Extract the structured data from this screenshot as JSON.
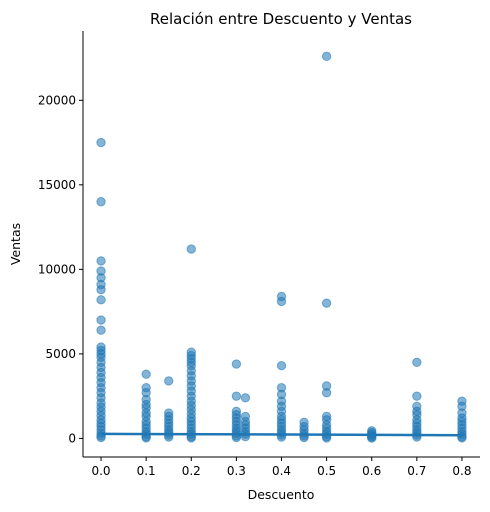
{
  "chart_data": {
    "type": "scatter",
    "title": "Relación entre Descuento y Ventas",
    "xlabel": "Descuento",
    "ylabel": "Ventas",
    "xlim": [
      -0.04,
      0.84
    ],
    "ylim": [
      -1100,
      24100
    ],
    "xticks": [
      0.0,
      0.1,
      0.2,
      0.3,
      0.4,
      0.5,
      0.6,
      0.7,
      0.8
    ],
    "xtick_labels": [
      "0.0",
      "0.1",
      "0.2",
      "0.3",
      "0.4",
      "0.5",
      "0.6",
      "0.7",
      "0.8"
    ],
    "yticks": [
      0,
      5000,
      10000,
      15000,
      20000
    ],
    "ytick_labels": [
      "0",
      "5000",
      "10000",
      "15000",
      "20000"
    ],
    "grid": false,
    "colors": {
      "points": "#1f77b4",
      "regression": "#1f77b4"
    },
    "regression_line": {
      "x": [
        0.0,
        0.8
      ],
      "y": [
        270,
        190
      ]
    },
    "series": [
      {
        "values": [
          [
            0.0,
            17500
          ],
          [
            0.0,
            14000
          ],
          [
            0.0,
            10500
          ],
          [
            0.0,
            9900
          ],
          [
            0.0,
            9500
          ],
          [
            0.0,
            9100
          ],
          [
            0.0,
            8800
          ],
          [
            0.0,
            8200
          ],
          [
            0.0,
            7000
          ],
          [
            0.0,
            6400
          ],
          [
            0.0,
            5400
          ],
          [
            0.0,
            5200
          ],
          [
            0.0,
            5000
          ],
          [
            0.0,
            4800
          ],
          [
            0.0,
            4500
          ],
          [
            0.0,
            4200
          ],
          [
            0.0,
            3900
          ],
          [
            0.0,
            3600
          ],
          [
            0.0,
            3300
          ],
          [
            0.0,
            3000
          ],
          [
            0.0,
            2700
          ],
          [
            0.0,
            2400
          ],
          [
            0.0,
            2100
          ],
          [
            0.0,
            1850
          ],
          [
            0.0,
            1600
          ],
          [
            0.0,
            1350
          ],
          [
            0.0,
            1100
          ],
          [
            0.0,
            900
          ],
          [
            0.0,
            700
          ],
          [
            0.0,
            500
          ],
          [
            0.0,
            300
          ],
          [
            0.0,
            150
          ],
          [
            0.0,
            50
          ],
          [
            0.1,
            3800
          ],
          [
            0.1,
            3000
          ],
          [
            0.1,
            2700
          ],
          [
            0.1,
            2300
          ],
          [
            0.1,
            2000
          ],
          [
            0.1,
            1800
          ],
          [
            0.1,
            1500
          ],
          [
            0.1,
            1300
          ],
          [
            0.1,
            1000
          ],
          [
            0.1,
            800
          ],
          [
            0.1,
            600
          ],
          [
            0.1,
            400
          ],
          [
            0.1,
            250
          ],
          [
            0.1,
            100
          ],
          [
            0.1,
            30
          ],
          [
            0.15,
            3400
          ],
          [
            0.15,
            1500
          ],
          [
            0.15,
            1300
          ],
          [
            0.15,
            1100
          ],
          [
            0.15,
            900
          ],
          [
            0.15,
            700
          ],
          [
            0.15,
            500
          ],
          [
            0.15,
            350
          ],
          [
            0.15,
            200
          ],
          [
            0.15,
            80
          ],
          [
            0.2,
            11200
          ],
          [
            0.2,
            5100
          ],
          [
            0.2,
            4900
          ],
          [
            0.2,
            4700
          ],
          [
            0.2,
            4500
          ],
          [
            0.2,
            4300
          ],
          [
            0.2,
            4000
          ],
          [
            0.2,
            3700
          ],
          [
            0.2,
            3400
          ],
          [
            0.2,
            3100
          ],
          [
            0.2,
            2800
          ],
          [
            0.2,
            2500
          ],
          [
            0.2,
            2200
          ],
          [
            0.2,
            1950
          ],
          [
            0.2,
            1700
          ],
          [
            0.2,
            1450
          ],
          [
            0.2,
            1200
          ],
          [
            0.2,
            1000
          ],
          [
            0.2,
            800
          ],
          [
            0.2,
            600
          ],
          [
            0.2,
            400
          ],
          [
            0.2,
            250
          ],
          [
            0.2,
            100
          ],
          [
            0.2,
            30
          ],
          [
            0.3,
            4400
          ],
          [
            0.3,
            2500
          ],
          [
            0.3,
            1600
          ],
          [
            0.3,
            1400
          ],
          [
            0.3,
            1200
          ],
          [
            0.3,
            1000
          ],
          [
            0.3,
            800
          ],
          [
            0.3,
            600
          ],
          [
            0.3,
            450
          ],
          [
            0.3,
            300
          ],
          [
            0.3,
            150
          ],
          [
            0.3,
            50
          ],
          [
            0.32,
            2400
          ],
          [
            0.32,
            1300
          ],
          [
            0.32,
            1000
          ],
          [
            0.32,
            800
          ],
          [
            0.32,
            600
          ],
          [
            0.32,
            400
          ],
          [
            0.32,
            250
          ],
          [
            0.32,
            100
          ],
          [
            0.4,
            8400
          ],
          [
            0.4,
            8100
          ],
          [
            0.4,
            4300
          ],
          [
            0.4,
            3000
          ],
          [
            0.4,
            2600
          ],
          [
            0.4,
            2200
          ],
          [
            0.4,
            1900
          ],
          [
            0.4,
            1600
          ],
          [
            0.4,
            1300
          ],
          [
            0.4,
            1100
          ],
          [
            0.4,
            900
          ],
          [
            0.4,
            700
          ],
          [
            0.4,
            500
          ],
          [
            0.4,
            350
          ],
          [
            0.4,
            200
          ],
          [
            0.4,
            80
          ],
          [
            0.45,
            950
          ],
          [
            0.45,
            700
          ],
          [
            0.45,
            500
          ],
          [
            0.45,
            300
          ],
          [
            0.45,
            150
          ],
          [
            0.45,
            50
          ],
          [
            0.5,
            22600
          ],
          [
            0.5,
            8000
          ],
          [
            0.5,
            3100
          ],
          [
            0.5,
            2700
          ],
          [
            0.5,
            1300
          ],
          [
            0.5,
            1100
          ],
          [
            0.5,
            800
          ],
          [
            0.5,
            600
          ],
          [
            0.5,
            400
          ],
          [
            0.5,
            250
          ],
          [
            0.5,
            100
          ],
          [
            0.5,
            30
          ],
          [
            0.6,
            450
          ],
          [
            0.6,
            350
          ],
          [
            0.6,
            250
          ],
          [
            0.6,
            150
          ],
          [
            0.6,
            70
          ],
          [
            0.6,
            20
          ],
          [
            0.7,
            4500
          ],
          [
            0.7,
            2500
          ],
          [
            0.7,
            1900
          ],
          [
            0.7,
            1600
          ],
          [
            0.7,
            1400
          ],
          [
            0.7,
            1100
          ],
          [
            0.7,
            900
          ],
          [
            0.7,
            700
          ],
          [
            0.7,
            500
          ],
          [
            0.7,
            350
          ],
          [
            0.7,
            200
          ],
          [
            0.7,
            80
          ],
          [
            0.8,
            2200
          ],
          [
            0.8,
            1900
          ],
          [
            0.8,
            1500
          ],
          [
            0.8,
            1200
          ],
          [
            0.8,
            1000
          ],
          [
            0.8,
            800
          ],
          [
            0.8,
            600
          ],
          [
            0.8,
            400
          ],
          [
            0.8,
            250
          ],
          [
            0.8,
            100
          ],
          [
            0.8,
            30
          ]
        ]
      }
    ]
  }
}
